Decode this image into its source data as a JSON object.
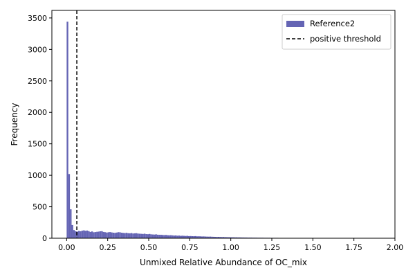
{
  "chart_data": {
    "type": "bar",
    "subtype": "histogram",
    "xlabel": "Unmixed Relative Abundance of OC_mix",
    "ylabel": "Frequency",
    "xlim": [
      -0.09,
      2.0
    ],
    "ylim": [
      0,
      3620
    ],
    "xticks": [
      0.0,
      0.25,
      0.5,
      0.75,
      1.0,
      1.25,
      1.5,
      1.75,
      2.0
    ],
    "xtick_labels": [
      "0.00",
      "0.25",
      "0.50",
      "0.75",
      "1.00",
      "1.25",
      "1.50",
      "1.75",
      "2.00"
    ],
    "yticks": [
      0,
      500,
      1000,
      1500,
      2000,
      2500,
      3000,
      3500
    ],
    "ytick_labels": [
      "0",
      "500",
      "1000",
      "1500",
      "2000",
      "2500",
      "3000",
      "3500"
    ],
    "bin_width": 0.01,
    "bin_start": 0.0,
    "series": [
      {
        "name": "Reference2",
        "color": "#6464b4",
        "values": [
          3440,
          1020,
          460,
          210,
          130,
          110,
          105,
          115,
          110,
          120,
          125,
          118,
          122,
          112,
          100,
          108,
          95,
          98,
          102,
          105,
          110,
          112,
          100,
          96,
          90,
          95,
          98,
          92,
          88,
          85,
          90,
          96,
          94,
          88,
          84,
          82,
          86,
          80,
          78,
          82,
          75,
          78,
          80,
          74,
          72,
          70,
          68,
          72,
          66,
          64,
          68,
          62,
          60,
          58,
          62,
          56,
          55,
          54,
          52,
          50,
          52,
          48,
          46,
          48,
          45,
          42,
          44,
          40,
          42,
          38,
          40,
          38,
          36,
          38,
          34,
          35,
          33,
          32,
          34,
          30,
          31,
          30,
          28,
          29,
          27,
          26,
          25,
          26,
          24,
          23,
          22,
          21,
          22,
          20,
          19,
          20,
          18,
          17,
          16,
          17,
          15,
          15,
          14,
          14,
          13,
          13,
          12,
          12,
          11,
          11,
          10,
          10,
          10,
          9,
          9,
          9,
          8,
          8,
          8,
          8,
          7,
          7,
          7,
          7,
          6,
          6,
          6,
          6,
          6,
          5,
          5,
          5,
          5,
          5,
          5,
          4,
          4,
          4,
          4,
          4,
          4,
          4,
          3,
          3,
          3,
          3,
          3,
          3,
          3,
          3,
          3,
          3,
          2,
          2,
          2,
          2,
          2,
          2,
          2,
          2,
          2,
          2,
          2,
          2,
          2,
          2,
          2,
          2,
          2,
          2,
          1,
          1,
          1,
          1,
          1,
          1,
          1,
          1,
          1,
          1,
          1,
          1,
          1,
          1,
          1,
          1,
          1,
          1,
          1,
          1,
          1,
          1,
          1,
          1,
          1,
          1,
          1,
          1,
          1,
          1
        ]
      }
    ],
    "threshold": {
      "name": "positive threshold",
      "x": 0.062,
      "style": "dashed",
      "color": "#000000"
    },
    "legend": {
      "position": "top-right",
      "entries": [
        "Reference2",
        "positive threshold"
      ]
    },
    "grid": false
  }
}
